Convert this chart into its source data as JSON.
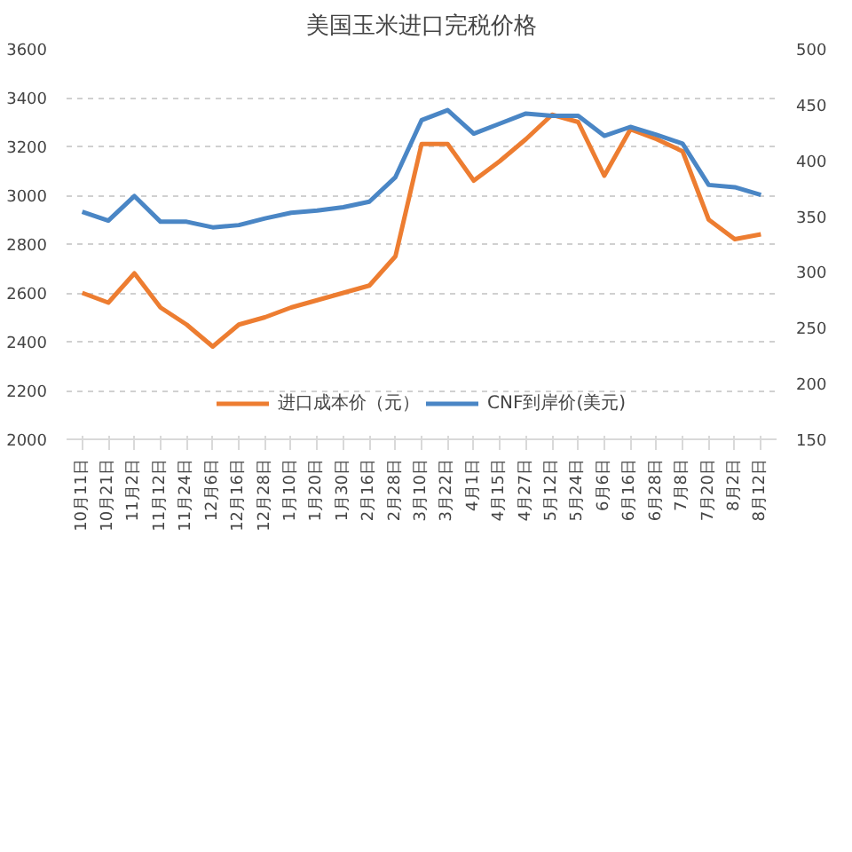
{
  "chart_data": {
    "type": "line",
    "title": "美国玉米进口完税价格",
    "categories": [
      "10月11日",
      "10月21日",
      "11月2日",
      "11月12日",
      "11月24日",
      "12月6日",
      "12月16日",
      "12月28日",
      "1月10日",
      "1月20日",
      "1月30日",
      "2月16日",
      "2月28日",
      "3月10日",
      "3月22日",
      "4月1日",
      "4月15日",
      "4月27日",
      "5月12日",
      "5月24日",
      "6月6日",
      "6月16日",
      "6月28日",
      "7月8日",
      "7月20日",
      "8月2日",
      "8月12日"
    ],
    "series": [
      {
        "name": "进口成本价（元）",
        "color": "#ed7d31",
        "values": [
          2600,
          2560,
          2680,
          2540,
          2470,
          2380,
          2470,
          2500,
          2540,
          2570,
          2600,
          2630,
          2750,
          3210,
          3210,
          3060,
          3140,
          3230,
          3330,
          3300,
          3080,
          3270,
          3230,
          3180,
          2900,
          2820,
          2840
        ]
      },
      {
        "name": "CNF到岸价(美元)",
        "color": "#4a86c5",
        "axis": "y2",
        "values": [
          354,
          346,
          368,
          345,
          345,
          340,
          342,
          348,
          353,
          355,
          358,
          363,
          385,
          436,
          445,
          424,
          433,
          442,
          440,
          440,
          422,
          430,
          423,
          415,
          378,
          376,
          369
        ]
      }
    ],
    "ylim": [
      2000,
      3600
    ],
    "yticks": [
      2000,
      2200,
      2400,
      2600,
      2800,
      3000,
      3200,
      3400,
      3600
    ],
    "y2lim": [
      150,
      500
    ],
    "y2ticks": [
      150,
      200,
      250,
      300,
      350,
      400,
      450,
      500
    ],
    "grid": "y",
    "legend": "bottom",
    "marker": "none",
    "line_style": "solid"
  }
}
